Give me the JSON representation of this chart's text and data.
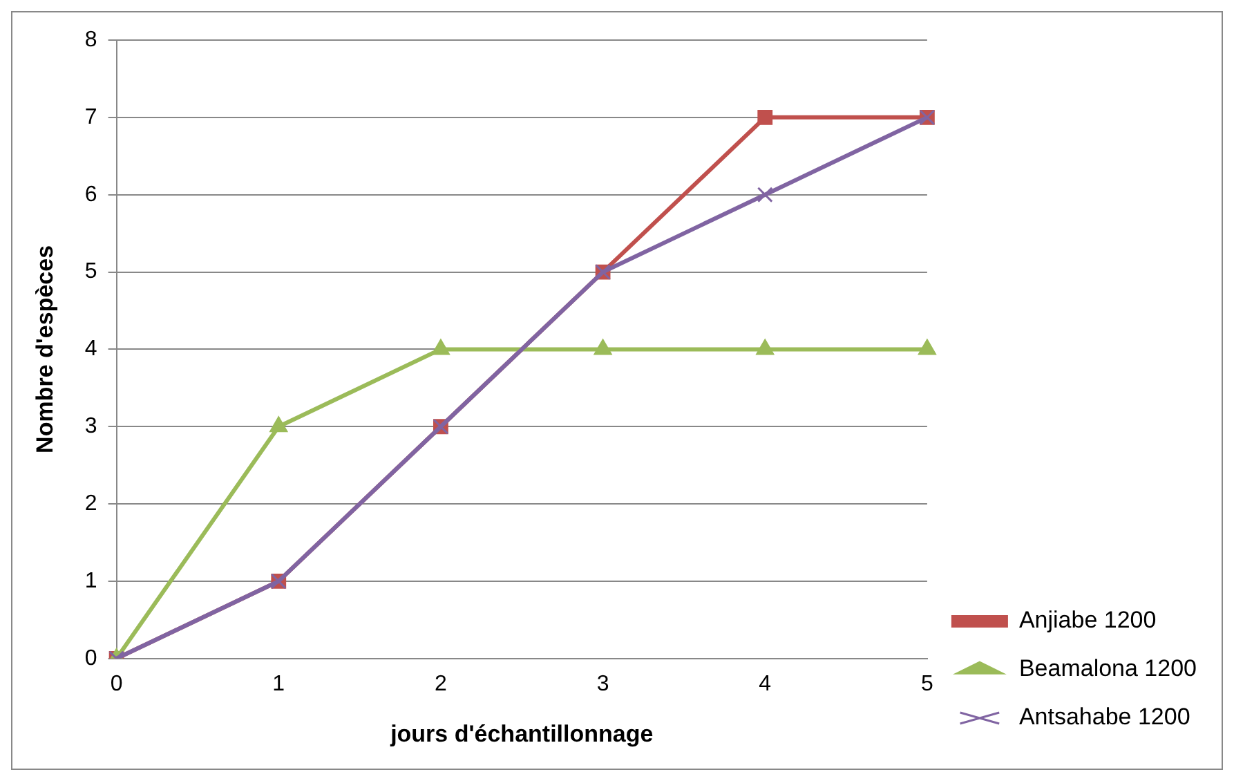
{
  "chart_data": {
    "type": "line",
    "xlabel": "jours d'échantillonnage",
    "ylabel": "Nombre d'espèces",
    "categories": [
      "0",
      "1",
      "2",
      "3",
      "4",
      "5"
    ],
    "series": [
      {
        "name": "Anjiabe 1200",
        "color": "#c0504d",
        "marker": "square",
        "values": [
          0,
          1,
          3,
          5,
          7,
          7
        ]
      },
      {
        "name": "Beamalona 1200",
        "color": "#9bbb59",
        "marker": "triangle",
        "values": [
          0,
          3,
          4,
          4,
          4,
          4
        ]
      },
      {
        "name": "Antsahabe 1200",
        "color": "#8064a2",
        "marker": "cross",
        "values": [
          0,
          1,
          3,
          5,
          6,
          7
        ]
      }
    ],
    "ylim": [
      0,
      8
    ],
    "yticks": [
      0,
      1,
      2,
      3,
      4,
      5,
      6,
      7,
      8
    ],
    "grid": "y",
    "legend": "bottom right",
    "line_style": "solid"
  }
}
